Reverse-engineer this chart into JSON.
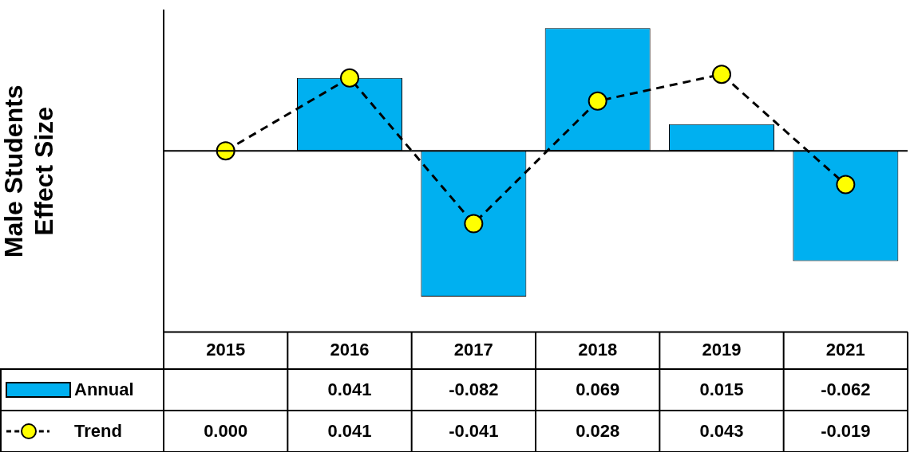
{
  "chart_data": {
    "type": "bar",
    "ylabel": "Male Students\nEffect Size",
    "categories": [
      "2015",
      "2016",
      "2017",
      "2018",
      "2019",
      "2021"
    ],
    "series": [
      {
        "name": "Annual",
        "color": "#00b0f0",
        "values": [
          null,
          0.041,
          -0.082,
          0.069,
          0.015,
          -0.062
        ],
        "value_labels": [
          null,
          "0.041",
          "-0.082",
          "0.069",
          "0.015",
          "-0.062"
        ]
      },
      {
        "name": "Trend",
        "type": "line",
        "color": "#ffff00",
        "marker": "circle",
        "line_style": "dashed",
        "values": [
          0.0,
          0.041,
          -0.041,
          0.028,
          0.043,
          -0.019
        ],
        "value_labels": [
          "0.000",
          "0.041",
          "-0.041",
          "0.028",
          "0.043",
          "-0.019"
        ]
      }
    ],
    "ylim": [
      -0.102,
      0.079
    ],
    "tick_labels": "x",
    "legend": "bottom left",
    "grid": false
  }
}
